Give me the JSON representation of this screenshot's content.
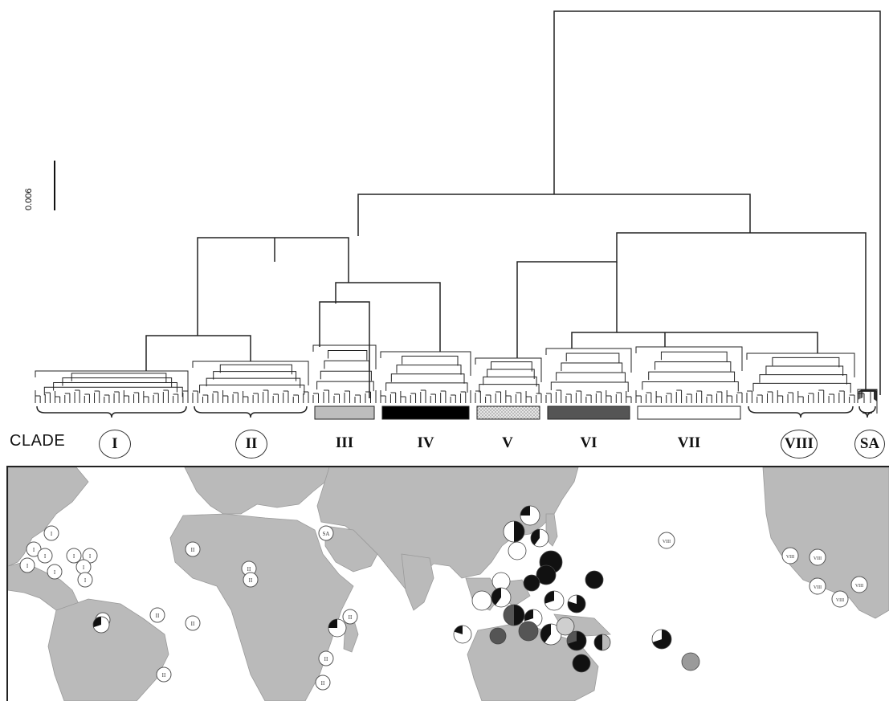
{
  "scale_bar": {
    "label": "0.006"
  },
  "clade_heading": "CLADE",
  "clades": [
    {
      "id": "I",
      "label": "I",
      "marker": "brace",
      "circled": true,
      "color": "#ffffff"
    },
    {
      "id": "II",
      "label": "II",
      "marker": "brace",
      "circled": true,
      "color": "#ffffff"
    },
    {
      "id": "III",
      "label": "III",
      "marker": "bar",
      "circled": false,
      "color": "#bdbdbd"
    },
    {
      "id": "IV",
      "label": "IV",
      "marker": "bar",
      "circled": false,
      "color": "#000000"
    },
    {
      "id": "V",
      "label": "V",
      "marker": "bar",
      "circled": false,
      "color": "#d9d9d9",
      "pattern": "stipple"
    },
    {
      "id": "VI",
      "label": "VI",
      "marker": "bar",
      "circled": false,
      "color": "#555555"
    },
    {
      "id": "VII",
      "label": "VII",
      "marker": "bar",
      "circled": false,
      "color": "#ffffff"
    },
    {
      "id": "VIII",
      "label": "VIII",
      "marker": "brace",
      "circled": true,
      "color": "#ffffff"
    },
    {
      "id": "SA",
      "label": "SA",
      "marker": "brace",
      "circled": true,
      "color": "#ffffff"
    }
  ],
  "map_markers": [
    {
      "label": "I"
    },
    {
      "label": "I"
    },
    {
      "label": "I"
    },
    {
      "label": "I"
    },
    {
      "label": "I"
    },
    {
      "label": "I"
    },
    {
      "label": "I"
    },
    {
      "label": "I"
    },
    {
      "label": "I"
    },
    {
      "label": "I"
    },
    {
      "label": "II"
    },
    {
      "label": "II"
    },
    {
      "label": "II"
    },
    {
      "label": "II"
    },
    {
      "label": "II"
    },
    {
      "label": "II"
    },
    {
      "label": "II"
    },
    {
      "label": "II"
    },
    {
      "label": "II"
    },
    {
      "label": "SA"
    },
    {
      "label": "VIII"
    },
    {
      "label": "VIII"
    },
    {
      "label": "VIII"
    },
    {
      "label": "VIII"
    },
    {
      "label": "VIII"
    },
    {
      "label": "VIII"
    }
  ],
  "colors": {
    "land": "#bcbcbc",
    "ink": "#1a1a1a"
  }
}
